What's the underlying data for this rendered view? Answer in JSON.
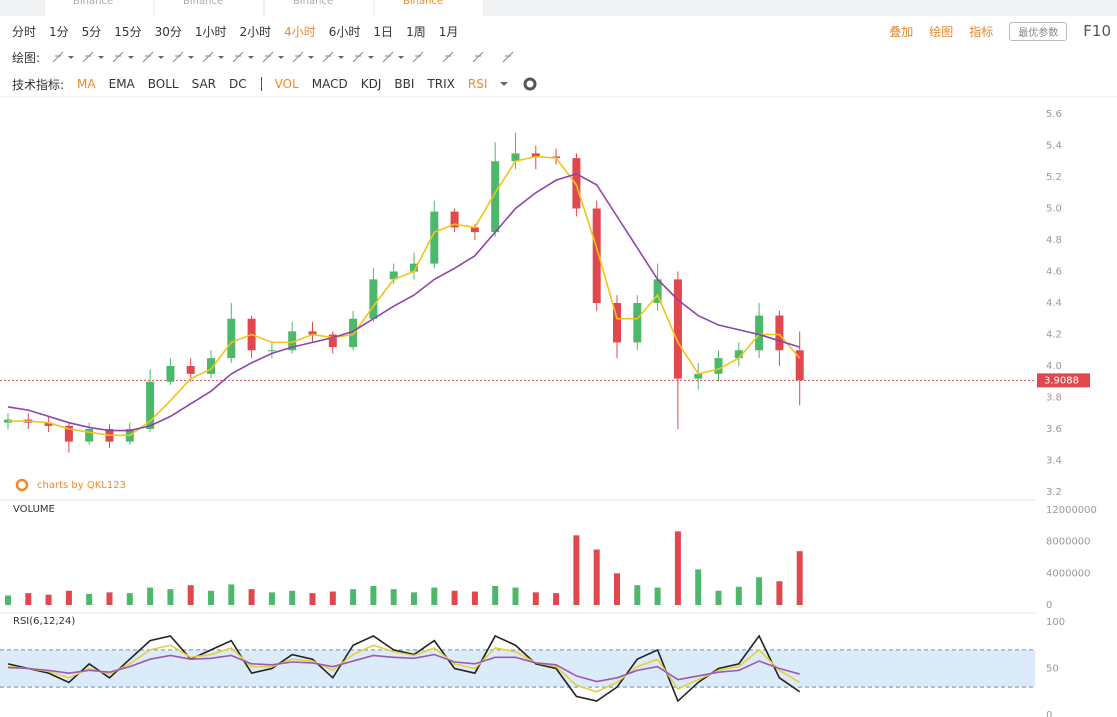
{
  "tabs": [
    {
      "label": "Binance"
    },
    {
      "label": "Binance"
    },
    {
      "label": "Binance"
    },
    {
      "label": "Binance",
      "active": true
    }
  ],
  "toolbar": {
    "intervals": [
      {
        "label": "分时"
      },
      {
        "label": "1分"
      },
      {
        "label": "5分"
      },
      {
        "label": "15分"
      },
      {
        "label": "30分"
      },
      {
        "label": "1小时"
      },
      {
        "label": "2小时"
      },
      {
        "label": "4小时",
        "active": true
      },
      {
        "label": "6小时"
      },
      {
        "label": "1日"
      },
      {
        "label": "1周"
      },
      {
        "label": "1月"
      }
    ],
    "right_tools": [
      "叠加",
      "绘图",
      "指标"
    ],
    "params_button": "最优参数",
    "f10": "F10",
    "drawing_label": "绘图:",
    "indicator_label": "技术指标:",
    "indicators": [
      {
        "label": "MA",
        "active": true
      },
      {
        "label": "EMA"
      },
      {
        "label": "BOLL"
      },
      {
        "label": "SAR"
      },
      {
        "label": "DC"
      },
      {
        "label": "VOL",
        "active": true
      },
      {
        "label": "MACD"
      },
      {
        "label": "KDJ"
      },
      {
        "label": "BBI"
      },
      {
        "label": "TRIX"
      },
      {
        "label": "RSI",
        "active": true
      }
    ]
  },
  "chart_data": [
    {
      "type": "candlestick",
      "watermark": "charts by QKL123",
      "up_color": "#4cb86a",
      "down_color": "#e0484d",
      "open": [
        3.64,
        3.66,
        3.64,
        3.62,
        3.52,
        3.6,
        3.52,
        3.6,
        3.9,
        4.0,
        3.95,
        4.05,
        4.3,
        4.1,
        4.1,
        4.22,
        4.2,
        4.12,
        4.3,
        4.55,
        4.6,
        4.65,
        4.98,
        4.88,
        4.85,
        5.3,
        5.35,
        5.33,
        5.32,
        5.0,
        4.4,
        4.15,
        4.4,
        4.55,
        3.92,
        3.95,
        4.05,
        4.1,
        4.32,
        4.1
      ],
      "high": [
        3.7,
        3.7,
        3.68,
        3.64,
        3.64,
        3.63,
        3.64,
        3.98,
        4.05,
        4.05,
        4.1,
        4.4,
        4.32,
        4.15,
        4.28,
        4.28,
        4.22,
        4.35,
        4.62,
        4.65,
        4.72,
        5.05,
        5.0,
        4.9,
        5.42,
        5.48,
        5.4,
        5.38,
        5.35,
        5.05,
        4.45,
        4.45,
        4.65,
        4.6,
        4.02,
        4.1,
        4.15,
        4.4,
        4.35,
        4.22
      ],
      "low": [
        3.6,
        3.6,
        3.58,
        3.45,
        3.5,
        3.48,
        3.5,
        3.58,
        3.88,
        3.9,
        3.92,
        4.02,
        4.05,
        4.05,
        4.08,
        4.15,
        4.08,
        4.1,
        4.28,
        4.52,
        4.55,
        4.62,
        4.85,
        4.8,
        4.82,
        5.25,
        5.25,
        5.28,
        4.95,
        4.35,
        4.05,
        4.1,
        4.35,
        3.6,
        3.85,
        3.9,
        4.0,
        4.05,
        4.0,
        3.75
      ],
      "close": [
        3.66,
        3.64,
        3.62,
        3.52,
        3.6,
        3.52,
        3.6,
        3.9,
        4.0,
        3.95,
        4.05,
        4.3,
        4.1,
        4.1,
        4.22,
        4.2,
        4.12,
        4.3,
        4.55,
        4.6,
        4.65,
        4.98,
        4.88,
        4.85,
        5.3,
        5.35,
        5.33,
        5.32,
        5.0,
        4.4,
        4.15,
        4.4,
        4.55,
        3.92,
        3.95,
        4.05,
        4.1,
        4.32,
        4.1,
        3.91
      ],
      "lines": [
        {
          "color": "#f0c419",
          "values": [
            3.65,
            3.65,
            3.64,
            3.6,
            3.58,
            3.56,
            3.56,
            3.65,
            3.78,
            3.92,
            3.98,
            4.15,
            4.2,
            4.15,
            4.15,
            4.2,
            4.18,
            4.2,
            4.38,
            4.55,
            4.6,
            4.85,
            4.9,
            4.88,
            5.1,
            5.3,
            5.33,
            5.32,
            5.15,
            4.75,
            4.3,
            4.3,
            4.45,
            4.15,
            3.95,
            3.98,
            4.05,
            4.2,
            4.2,
            4.05
          ]
        },
        {
          "color": "#8e44ad",
          "values": [
            3.74,
            3.72,
            3.68,
            3.64,
            3.61,
            3.59,
            3.59,
            3.62,
            3.68,
            3.76,
            3.84,
            3.95,
            4.02,
            4.08,
            4.12,
            4.15,
            4.18,
            4.22,
            4.3,
            4.38,
            4.45,
            4.55,
            4.62,
            4.7,
            4.85,
            5.0,
            5.1,
            5.18,
            5.22,
            5.15,
            4.95,
            4.75,
            4.55,
            4.42,
            4.32,
            4.26,
            4.23,
            4.2,
            4.16,
            4.12
          ]
        }
      ],
      "last_price": 3.9088,
      "ylim": [
        3.2,
        5.6
      ],
      "yticks": [
        3.2,
        3.4,
        3.6,
        3.8,
        {
          "value": 4,
          "label": "4.0"
        },
        4.2,
        4.4,
        4.6,
        4.8,
        {
          "value": 5,
          "label": "5.0"
        },
        5.2,
        5.4,
        5.6
      ]
    },
    {
      "type": "bar",
      "title": "VOLUME",
      "values": [
        1200000,
        1500000,
        1300000,
        1800000,
        1400000,
        1600000,
        1500000,
        2200000,
        2000000,
        2500000,
        1800000,
        2600000,
        2000000,
        1600000,
        1800000,
        1500000,
        1700000,
        2000000,
        2400000,
        2000000,
        1600000,
        2200000,
        1800000,
        1700000,
        2400000,
        2200000,
        1600000,
        1500000,
        8800000,
        7000000,
        4000000,
        2500000,
        2200000,
        9300000,
        4500000,
        1800000,
        2300000,
        3500000,
        3000000,
        6800000
      ],
      "ylim": [
        0,
        12000000
      ],
      "yticks": [
        0,
        4000000,
        8000000,
        12000000
      ]
    },
    {
      "type": "line",
      "title": "RSI(6,12,24)",
      "band": [
        30,
        70
      ],
      "band_color": "#d3e6f8",
      "series": [
        {
          "color": "#222222",
          "values": [
            55,
            50,
            45,
            35,
            55,
            40,
            60,
            80,
            85,
            60,
            70,
            80,
            45,
            50,
            65,
            60,
            40,
            75,
            85,
            70,
            65,
            80,
            50,
            45,
            85,
            75,
            55,
            50,
            20,
            15,
            30,
            60,
            70,
            15,
            35,
            50,
            55,
            85,
            40,
            25
          ]
        },
        {
          "color": "#e6cf3c",
          "values": [
            52,
            50,
            47,
            40,
            50,
            44,
            55,
            70,
            75,
            62,
            65,
            72,
            52,
            52,
            60,
            58,
            48,
            65,
            75,
            68,
            64,
            72,
            55,
            50,
            72,
            68,
            56,
            52,
            32,
            25,
            35,
            52,
            60,
            28,
            38,
            48,
            52,
            70,
            48,
            35
          ]
        },
        {
          "color": "#9b59b6",
          "values": [
            51,
            50,
            48,
            45,
            48,
            46,
            52,
            60,
            64,
            60,
            61,
            64,
            55,
            54,
            57,
            56,
            52,
            58,
            64,
            62,
            61,
            65,
            57,
            55,
            62,
            62,
            56,
            54,
            42,
            36,
            40,
            48,
            52,
            38,
            42,
            46,
            48,
            58,
            50,
            44
          ]
        }
      ],
      "ylim": [
        0,
        100
      ],
      "yticks": [
        0,
        50,
        100
      ]
    }
  ]
}
